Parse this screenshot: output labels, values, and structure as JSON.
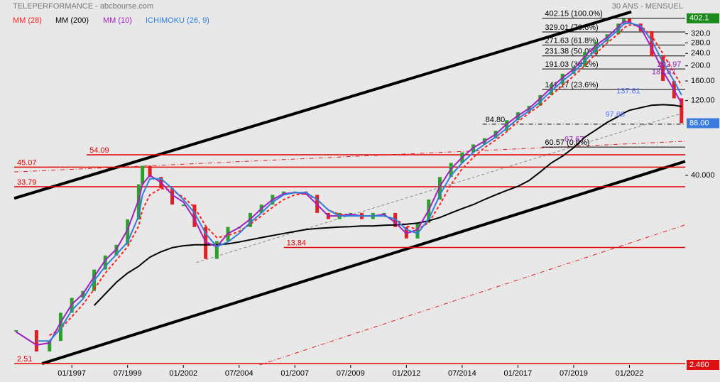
{
  "chart_data": {
    "type": "candlestick",
    "title": "TELEPERFORMANCE - abcbourse.com",
    "subtitle": "30 ANS - MENSUEL",
    "log_scale": true,
    "up_color": "#2ca02c",
    "down_color": "#e02020",
    "x": [
      "1994-07",
      "1995-06",
      "1996-01",
      "1996-07",
      "1997-01",
      "1997-07",
      "1998-01",
      "1998-07",
      "1999-01",
      "1999-07",
      "2000-01",
      "2000-03",
      "2000-07",
      "2001-01",
      "2001-07",
      "2002-01",
      "2002-07",
      "2003-01",
      "2003-07",
      "2004-01",
      "2004-07",
      "2005-01",
      "2005-07",
      "2006-01",
      "2006-07",
      "2007-01",
      "2007-07",
      "2008-01",
      "2008-07",
      "2009-01",
      "2009-07",
      "2010-01",
      "2010-07",
      "2011-01",
      "2011-07",
      "2012-01",
      "2012-07",
      "2013-01",
      "2013-07",
      "2014-01",
      "2014-07",
      "2015-01",
      "2015-07",
      "2016-01",
      "2016-07",
      "2017-01",
      "2017-07",
      "2018-01",
      "2018-07",
      "2019-01",
      "2019-07",
      "2020-01",
      "2020-07",
      "2021-01",
      "2021-07",
      "2021-10",
      "2022-01",
      "2022-07",
      "2023-01",
      "2023-07",
      "2024-01",
      "2024-05"
    ],
    "values": [
      4.1,
      3.0,
      3.5,
      5.3,
      6.6,
      7.3,
      10,
      12.3,
      14.4,
      20.9,
      35,
      46,
      39,
      33,
      26,
      26,
      18.7,
      11.7,
      15.2,
      18.7,
      18.7,
      23,
      26,
      30,
      31.5,
      31.5,
      30,
      23,
      21,
      23,
      23,
      21,
      23,
      23,
      18.7,
      15.8,
      19.9,
      28,
      39,
      48,
      56,
      63,
      69,
      77,
      90,
      101,
      111,
      130,
      153,
      178,
      198,
      245,
      285,
      318,
      372,
      400,
      372,
      333,
      230,
      160,
      124,
      86
    ],
    "series": [
      {
        "name": "MM (28)",
        "color": "#ff2020",
        "dash": "4 3",
        "width": 2,
        "values": [
          null,
          null,
          3.8,
          4.2,
          5.0,
          6.0,
          7.5,
          9.5,
          11.5,
          14,
          19,
          24,
          30,
          33,
          32,
          29,
          25,
          19,
          16,
          16.5,
          17.5,
          19.5,
          22,
          25,
          28,
          30,
          30.5,
          28,
          24,
          22.5,
          22.5,
          22,
          22,
          22,
          21,
          19,
          18,
          20,
          26,
          35,
          44,
          52,
          60,
          67,
          76,
          88,
          100,
          112,
          130,
          150,
          172,
          200,
          240,
          280,
          320,
          350,
          365,
          360,
          310,
          240,
          180,
          150
        ]
      },
      {
        "name": "MM (200)",
        "color": "#000000",
        "dash": "",
        "width": 2,
        "values": [
          null,
          null,
          null,
          null,
          null,
          null,
          5.9,
          7,
          8.3,
          9.5,
          10.5,
          11,
          12,
          13,
          13.8,
          14.2,
          14.4,
          14.4,
          14.4,
          14.6,
          15,
          15.5,
          16,
          16.5,
          17,
          17.5,
          18,
          18.3,
          18.5,
          18.7,
          18.8,
          19,
          19,
          19.2,
          19.3,
          19.5,
          19.8,
          20.5,
          21.5,
          23,
          24.5,
          26,
          28,
          30,
          32,
          34,
          37,
          42,
          48,
          53,
          60,
          70,
          78,
          87,
          95,
          100,
          104,
          108,
          112,
          113,
          112,
          110
        ]
      },
      {
        "name": "MM (10)",
        "color": "#a020c0",
        "dash": "",
        "width": 2,
        "values": [
          4.0,
          3.3,
          3.4,
          4.6,
          6.0,
          7.0,
          9,
          11.5,
          13.5,
          18,
          28,
          35,
          40,
          36,
          30,
          27,
          21,
          15,
          14,
          17,
          18.5,
          21,
          24.5,
          28,
          30.5,
          31,
          30.5,
          26,
          22,
          22,
          22.5,
          22,
          22,
          22.5,
          20,
          17,
          18,
          24,
          34,
          44,
          52,
          60,
          66,
          73,
          85,
          96,
          107,
          124,
          145,
          168,
          190,
          230,
          270,
          305,
          355,
          385,
          380,
          350,
          260,
          185,
          140,
          115
        ]
      },
      {
        "name": "ICHIMOKU (26, 9)",
        "color": "#2f7fd8",
        "dash": "",
        "width": 2,
        "values": [
          null,
          3.5,
          3.5,
          4.2,
          5.5,
          6.5,
          8.5,
          10.5,
          12.5,
          15,
          22,
          30,
          38,
          38,
          33,
          28,
          23,
          17,
          14,
          15,
          17,
          20,
          23,
          27,
          30,
          31,
          31,
          28,
          24,
          22,
          22,
          22,
          22,
          22,
          21,
          18,
          17,
          21,
          30,
          40,
          48,
          56,
          63,
          70,
          80,
          92,
          103,
          118,
          138,
          160,
          182,
          215,
          255,
          295,
          340,
          370,
          375,
          360,
          290,
          210,
          160,
          130
        ]
      }
    ],
    "xlim": [
      "1994-06",
      "2024-07"
    ],
    "xticks": [
      {
        "value": "1997-01",
        "label": "01/1997"
      },
      {
        "value": "1999-07",
        "label": "07/1999"
      },
      {
        "value": "2002-01",
        "label": "01/2002"
      },
      {
        "value": "2004-07",
        "label": "07/2004"
      },
      {
        "value": "2007-01",
        "label": "01/2007"
      },
      {
        "value": "2009-07",
        "label": "07/2009"
      },
      {
        "value": "2012-01",
        "label": "01/2012"
      },
      {
        "value": "2014-07",
        "label": "07/2014"
      },
      {
        "value": "2017-01",
        "label": "01/2017"
      },
      {
        "value": "2019-07",
        "label": "07/2019"
      },
      {
        "value": "2022-01",
        "label": "01/2022"
      }
    ],
    "ylim": [
      2.46,
      450
    ],
    "yticks": [
      {
        "value": 320,
        "label": "320.0"
      },
      {
        "value": 280,
        "label": "280.0"
      },
      {
        "value": 240,
        "label": "240.0"
      },
      {
        "value": 200,
        "label": "200.0"
      },
      {
        "value": 160,
        "label": "160.00"
      },
      {
        "value": 120,
        "label": "120.00"
      },
      {
        "value": 40,
        "label": "40.000"
      }
    ],
    "price_tags": [
      {
        "value": 402.1,
        "label": "402.1",
        "color": "#1a8a1a"
      },
      {
        "value": 86,
        "label": "86.00",
        "color": "#3b7be0"
      },
      {
        "value": 2.46,
        "label": "2.460",
        "color": "#e01010"
      }
    ],
    "levels": [
      {
        "value": 54.09,
        "from": "1997-09",
        "color": "#e00000"
      },
      {
        "value": 45.07,
        "from": "1994-06",
        "color": "#e00000"
      },
      {
        "value": 33.79,
        "from": "1994-06",
        "color": "#e00000"
      },
      {
        "value": 13.84,
        "from": "2006-07",
        "color": "#e00000"
      },
      {
        "value": 2.51,
        "from": "1994-06",
        "color": "#e00000"
      },
      {
        "value": 402.15,
        "label": "402.15 (100.0%)",
        "from": "2018-02",
        "color": "#000000"
      },
      {
        "value": 329.01,
        "label": "329.01 (78.6%)",
        "from": "2018-02",
        "color": "#000000"
      },
      {
        "value": 271.63,
        "label": "271.63 (61.8%)",
        "from": "2018-02",
        "color": "#000000"
      },
      {
        "value": 231.38,
        "label": "231.38 (50.0%)",
        "from": "2018-02",
        "color": "#000000"
      },
      {
        "value": 191.03,
        "label": "191.03 (38.2%)",
        "from": "2018-02",
        "color": "#000000"
      },
      {
        "value": 141.17,
        "label": "141.17 (23.6%)",
        "from": "2018-02",
        "color": "#000000"
      },
      {
        "value": 84.8,
        "label": "84.80",
        "from": "2015-06",
        "color": "#000000"
      },
      {
        "value": 60.57,
        "label": "60.57 (0.0%)",
        "from": "2018-02",
        "color": "#000000"
      }
    ],
    "trendlines": [
      {
        "x1": "1994-06",
        "y1": 28.5,
        "x2": "2022-02",
        "y2": 442,
        "color": "#000000",
        "width": 4,
        "dash": ""
      },
      {
        "x1": "1995-09",
        "y1": 2.51,
        "x2": "2024-07",
        "y2": 49.1,
        "color": "#000000",
        "width": 4,
        "dash": ""
      },
      {
        "x1": "1994-06",
        "y1": 42,
        "x2": "2024-07",
        "y2": 66,
        "color": "#e02020",
        "width": 1,
        "dash": "6 3 1 3"
      },
      {
        "x1": "2005-06",
        "y1": 2.46,
        "x2": "2024-07",
        "y2": 19.3,
        "color": "#e02020",
        "width": 1,
        "dash": "6 3 1 3"
      },
      {
        "x1": "2002-08",
        "y1": 11.1,
        "x2": "2024-07",
        "y2": 101,
        "color": "#888888",
        "width": 1,
        "dash": "4 3"
      }
    ],
    "annotations": [
      {
        "x": "2021-06",
        "value": 137.61,
        "label": "137.61",
        "color": "#5577ff"
      },
      {
        "x": "2020-12",
        "value": 97.66,
        "label": "97.66",
        "color": "#5577ff"
      },
      {
        "x": "2019-02",
        "value": 67.67,
        "label": "67.67",
        "color": "#9020b0"
      },
      {
        "x": "2023-04",
        "value": 202.97,
        "label": "202.97",
        "color": "#9020b0"
      },
      {
        "x": "2023-01",
        "value": 181.87,
        "label": "181.87",
        "color": "#9020b0"
      }
    ]
  }
}
